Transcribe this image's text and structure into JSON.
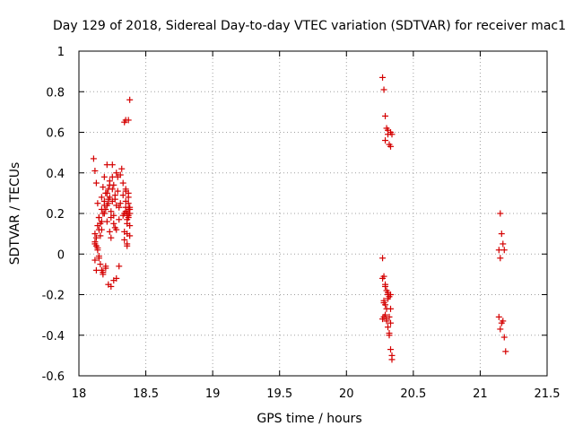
{
  "chart_data": {
    "type": "scatter",
    "title": "Day 129 of 2018, Sidereal Day-to-day VTEC variation (SDTVAR) for receiver mac1",
    "xlabel": "GPS time / hours",
    "ylabel": "SDTVAR / TECUs",
    "xlim": [
      18,
      21.5
    ],
    "ylim": [
      -0.6,
      1
    ],
    "xticks": [
      "18",
      "18.5",
      "19",
      "19.5",
      "20",
      "20.5",
      "21",
      "21.5"
    ],
    "xtick_values": [
      18,
      18.5,
      19,
      19.5,
      20,
      20.5,
      21,
      21.5
    ],
    "yticks": [
      "-0.6",
      "-0.4",
      "-0.2",
      "0",
      "0.2",
      "0.4",
      "0.6",
      "0.8",
      "1"
    ],
    "ytick_values": [
      -0.6,
      -0.4,
      -0.2,
      0,
      0.2,
      0.4,
      0.6,
      0.8,
      1
    ],
    "grid": true,
    "marker": "+",
    "marker_color": "#d40000",
    "series": [
      {
        "name": "mac1",
        "x": [
          18.11,
          18.12,
          18.12,
          18.13,
          18.13,
          18.14,
          18.14,
          18.15,
          18.15,
          18.16,
          18.16,
          18.17,
          18.17,
          18.18,
          18.18,
          18.19,
          18.19,
          18.2,
          18.2,
          18.21,
          18.21,
          18.22,
          18.22,
          18.23,
          18.23,
          18.24,
          18.24,
          18.25,
          18.25,
          18.26,
          18.26,
          18.27,
          18.27,
          18.28,
          18.28,
          18.29,
          18.3,
          18.3,
          18.31,
          18.32,
          18.33,
          18.34,
          18.35,
          18.35,
          18.36,
          18.36,
          18.37,
          18.37,
          18.38,
          18.38,
          18.12,
          18.14,
          18.16,
          18.18,
          18.2,
          18.22,
          18.24,
          18.26,
          18.28,
          18.3,
          18.13,
          18.15,
          18.17,
          18.19,
          18.21,
          18.23,
          18.25,
          18.12,
          18.14,
          18.15,
          18.17,
          18.19,
          18.21,
          18.23,
          18.25,
          18.27,
          18.29,
          18.31,
          18.33,
          18.35,
          18.12,
          18.13,
          18.15,
          18.17,
          18.18,
          18.2,
          18.22,
          18.24,
          18.26,
          18.28,
          18.34,
          18.37,
          18.35,
          18.38,
          18.36,
          18.37,
          18.35,
          18.38,
          18.36,
          18.37,
          18.34,
          18.36,
          18.38,
          18.37,
          18.35,
          18.33,
          18.38,
          18.36,
          18.34,
          18.37,
          20.27,
          20.28,
          20.29,
          20.3,
          20.31,
          20.32,
          20.33,
          20.27,
          20.28,
          20.29,
          20.3,
          20.31,
          20.32,
          20.33,
          20.27,
          20.28,
          20.29,
          20.3,
          20.31,
          20.32,
          20.33,
          20.34,
          20.28,
          20.29,
          20.3,
          20.31,
          20.32,
          20.33,
          20.34,
          20.27,
          20.29,
          20.31,
          20.33,
          20.28,
          20.3,
          20.32,
          20.34,
          20.33,
          20.31,
          20.29,
          21.14,
          21.15,
          21.16,
          21.17,
          21.18,
          21.19,
          21.14,
          21.15,
          21.16,
          21.17,
          21.18,
          21.15
        ],
        "y": [
          0.47,
          0.41,
          0.05,
          0.35,
          -0.08,
          0.25,
          0.03,
          0.18,
          -0.02,
          0.09,
          0.15,
          0.28,
          0.12,
          0.33,
          0.2,
          0.38,
          0.24,
          0.22,
          0.3,
          0.44,
          0.16,
          0.27,
          0.32,
          0.11,
          0.36,
          0.21,
          0.08,
          0.44,
          0.26,
          0.34,
          0.19,
          0.13,
          0.29,
          0.24,
          0.4,
          0.38,
          0.23,
          0.17,
          0.39,
          0.42,
          0.35,
          0.2,
          0.26,
          0.31,
          0.04,
          0.1,
          0.18,
          0.3,
          0.22,
          0.14,
          0.06,
          0.02,
          -0.05,
          -0.1,
          -0.07,
          -0.15,
          -0.16,
          -0.13,
          -0.12,
          -0.06,
          0.08,
          0.12,
          0.16,
          0.2,
          0.24,
          0.28,
          0.32,
          0.1,
          0.14,
          0.18,
          0.22,
          0.26,
          0.3,
          0.34,
          0.38,
          0.27,
          0.31,
          0.25,
          0.19,
          0.23,
          -0.03,
          0.04,
          -0.01,
          -0.08,
          -0.09,
          -0.06,
          0.25,
          0.18,
          0.15,
          0.12,
          0.65,
          0.66,
          0.66,
          0.76,
          0.2,
          0.25,
          0.21,
          0.23,
          0.17,
          0.19,
          0.07,
          0.05,
          0.09,
          0.28,
          0.32,
          0.29,
          0.2,
          0.15,
          0.11,
          0.22,
          0.87,
          0.81,
          0.68,
          0.62,
          0.59,
          0.54,
          0.53,
          -0.02,
          -0.11,
          -0.15,
          -0.18,
          -0.2,
          -0.21,
          -0.2,
          -0.32,
          -0.31,
          -0.3,
          -0.33,
          -0.36,
          -0.4,
          -0.47,
          -0.5,
          -0.23,
          -0.25,
          -0.27,
          -0.22,
          -0.31,
          -0.34,
          -0.52,
          -0.12,
          -0.16,
          -0.19,
          -0.27,
          -0.24,
          -0.32,
          -0.39,
          0.59,
          0.6,
          0.61,
          0.56,
          0.02,
          -0.02,
          0.1,
          0.05,
          0.02,
          -0.48,
          -0.31,
          -0.37,
          -0.34,
          -0.33,
          -0.41,
          0.2
        ]
      }
    ]
  }
}
